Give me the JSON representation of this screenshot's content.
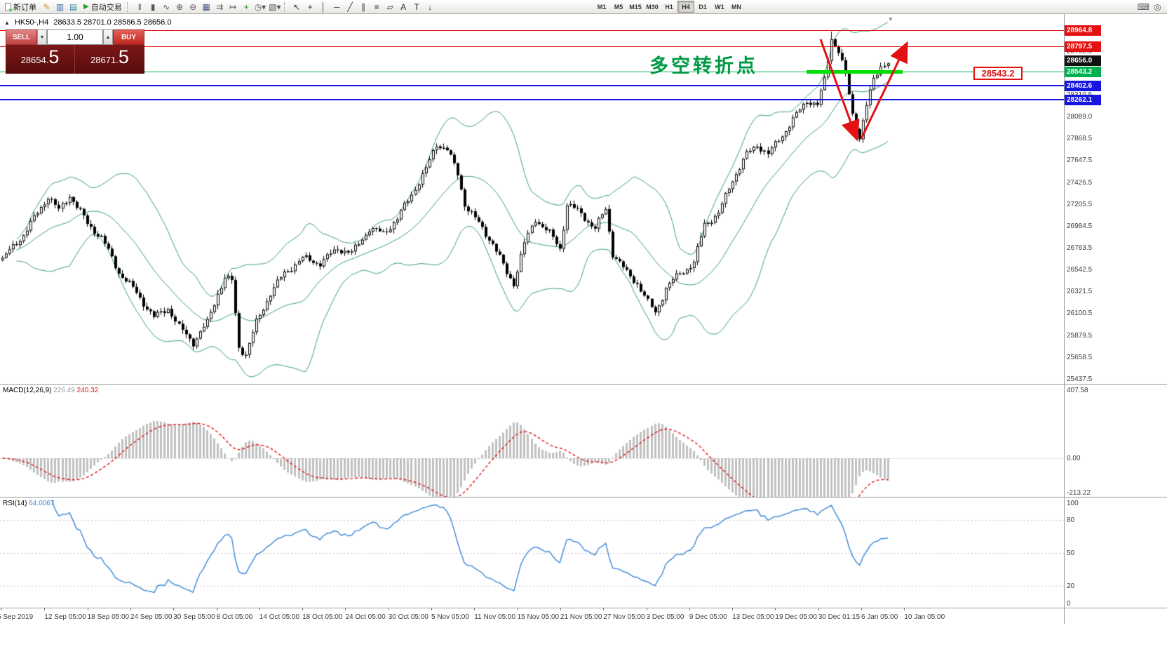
{
  "toolbar": {
    "new_order_label": "新订单",
    "autotrading_label": "自动交易",
    "left_icons": [
      {
        "name": "metaeditor-icon",
        "glyph": "✎",
        "color": "#c79810"
      },
      {
        "name": "market-watch-icon",
        "glyph": "▥",
        "color": "#3a6ea5"
      },
      {
        "name": "data-window-icon",
        "glyph": "▤",
        "color": "#3a8ea5"
      }
    ],
    "chart_icons": [
      {
        "name": "ohlc-bars-icon",
        "glyph": "‖",
        "color": "#555555"
      },
      {
        "name": "candlestick-icon",
        "glyph": "▮",
        "color": "#555555"
      },
      {
        "name": "line-chart-icon",
        "glyph": "∿",
        "color": "#555555"
      },
      {
        "name": "zoom-in-icon",
        "glyph": "⊕",
        "color": "#555555"
      },
      {
        "name": "zoom-out-icon",
        "glyph": "⊖",
        "color": "#555555"
      },
      {
        "name": "tile-windows-icon",
        "glyph": "▦",
        "color": "#4a5a8a"
      },
      {
        "name": "auto-scroll-icon",
        "glyph": "⇉",
        "color": "#555555"
      },
      {
        "name": "chart-shift-icon",
        "glyph": "↦",
        "color": "#555555"
      },
      {
        "name": "indicators-add-icon",
        "glyph": "+",
        "color": "#00a000"
      },
      {
        "name": "periods-dropdown-icon",
        "glyph": "◷▾",
        "color": "#555555"
      },
      {
        "name": "templates-icon",
        "glyph": "▧▾",
        "color": "#555555"
      }
    ],
    "line_tool_icons": [
      {
        "name": "cursor-icon",
        "glyph": "↖",
        "color": "#333333"
      },
      {
        "name": "crosshair-icon",
        "glyph": "+",
        "color": "#333333"
      },
      {
        "name": "vertical-line-icon",
        "glyph": "│",
        "color": "#333333"
      },
      {
        "name": "horizontal-line-icon",
        "glyph": "─",
        "color": "#333333"
      },
      {
        "name": "trendline-icon",
        "glyph": "╱",
        "color": "#333333"
      },
      {
        "name": "channel-icon",
        "glyph": "∥",
        "color": "#333333"
      },
      {
        "name": "fibonacci-icon",
        "glyph": "≡",
        "color": "#333333"
      },
      {
        "name": "shapes-icon",
        "glyph": "▱",
        "color": "#333333"
      },
      {
        "name": "text-icon",
        "glyph": "A",
        "color": "#333333"
      },
      {
        "name": "text-label-icon",
        "glyph": "T",
        "color": "#333333"
      },
      {
        "name": "arrow-objects-icon",
        "glyph": "↓",
        "color": "#333333"
      }
    ],
    "timeframes": [
      "M1",
      "M5",
      "M15",
      "M30",
      "H1",
      "H4",
      "D1",
      "W1",
      "MN"
    ],
    "active_timeframe": "H4",
    "right_icons": [
      {
        "name": "keyboard-icon",
        "glyph": "⌨",
        "color": "#555555"
      },
      {
        "name": "search-cursor-icon",
        "glyph": "◎",
        "color": "#555555"
      }
    ]
  },
  "order_panel": {
    "collapse_icon": "▲",
    "sell_label": "SELL",
    "buy_label": "BUY",
    "volume": "1.00",
    "spin_down": "▼",
    "spin_up": "▲",
    "sell_price_small": "28654.",
    "sell_price_big": "5",
    "buy_price_small": "28671.",
    "buy_price_big": "5"
  },
  "chart": {
    "symbol_title": "HK50-,H4",
    "ohlc_text": "28633.5 28701.0 28586.5 28656.0",
    "annotation_text": "多空转折点",
    "callout_price": "28543.2",
    "shift_marker": "▼",
    "bid_tag": "28656.0",
    "bid_price": 28656.0,
    "price_max": 29130,
    "price_min": 25390,
    "axis_labels": [
      28752.5,
      28531.5,
      28310.5,
      28089.0,
      27868.5,
      27647.5,
      27426.5,
      27205.5,
      26984.5,
      26763.5,
      26542.5,
      26321.5,
      26100.5,
      25879.5,
      25658.5,
      25437.5
    ],
    "hlines": [
      {
        "price": 28964.8,
        "label": "28964.8",
        "color": "#e31111",
        "width": 1
      },
      {
        "price": 28797.5,
        "label": "28797.5",
        "color": "#e31111",
        "width": 1
      },
      {
        "price": 28543.2,
        "label": "28543.2",
        "color": "#00b050",
        "width": 1
      },
      {
        "price": 28402.6,
        "label": "28402.6",
        "color": "#1515dd",
        "width": 2
      },
      {
        "price": 28262.1,
        "label": "28262.1",
        "color": "#1515dd",
        "width": 2
      }
    ],
    "time_labels": [
      "5 Sep 2019",
      "12 Sep 05:00",
      "18 Sep 05:00",
      "24 Sep 05:00",
      "30 Sep 05:00",
      "8 Oct 05:00",
      "14 Oct 05:00",
      "18 Oct 05:00",
      "24 Oct 05:00",
      "30 Oct 05:00",
      "5 Nov 05:00",
      "11 Nov 05:00",
      "15 Nov 05:00",
      "21 Nov 05:00",
      "27 Nov 05:00",
      "3 Dec 05:00",
      "9 Dec 05:00",
      "13 Dec 05:00",
      "19 Dec 05:00",
      "30 Dec 01:15",
      "6 Jan 05:00",
      "10 Jan 05:00"
    ]
  },
  "macd": {
    "label": "MACD(12,26,9)",
    "value_main": "226.49",
    "value_signal": "240.32",
    "axis_max": 407.58,
    "axis_min": -213.22,
    "axis_labels": [
      "407.58",
      "0.00",
      "-213.22"
    ]
  },
  "rsi": {
    "label": "RSI(14)",
    "value": "64.0067",
    "levels": [
      80,
      50,
      20
    ],
    "axis_labels": [
      "100",
      "80",
      "50",
      "20",
      "0"
    ]
  },
  "chart_data": {
    "type": "candlestick",
    "symbol": "HK50-",
    "timeframe": "H4",
    "bars": 252,
    "bollinger": {
      "period": 20,
      "deviation": 2.2
    },
    "peak": {
      "index": 235,
      "high": 28952
    },
    "trough": {
      "index": 69,
      "low": 25655
    },
    "close_anchors": [
      [
        0,
        26650
      ],
      [
        6,
        26900
      ],
      [
        10,
        27120
      ],
      [
        13,
        27290
      ],
      [
        16,
        27140
      ],
      [
        19,
        27300
      ],
      [
        24,
        27010
      ],
      [
        28,
        26870
      ],
      [
        33,
        26520
      ],
      [
        38,
        26310
      ],
      [
        43,
        26060
      ],
      [
        47,
        26160
      ],
      [
        50,
        25960
      ],
      [
        54,
        25810
      ],
      [
        58,
        26010
      ],
      [
        61,
        26310
      ],
      [
        63,
        26460
      ],
      [
        65,
        26430
      ],
      [
        67,
        25760
      ],
      [
        69,
        25690
      ],
      [
        72,
        26010
      ],
      [
        76,
        26310
      ],
      [
        80,
        26510
      ],
      [
        85,
        26660
      ],
      [
        90,
        26610
      ],
      [
        95,
        26760
      ],
      [
        99,
        26710
      ],
      [
        104,
        26960
      ],
      [
        108,
        26910
      ],
      [
        112,
        27060
      ],
      [
        116,
        27310
      ],
      [
        120,
        27560
      ],
      [
        123,
        27820
      ],
      [
        126,
        27760
      ],
      [
        129,
        27510
      ],
      [
        131,
        27210
      ],
      [
        135,
        27010
      ],
      [
        139,
        26810
      ],
      [
        143,
        26510
      ],
      [
        145,
        26410
      ],
      [
        148,
        26810
      ],
      [
        151,
        27060
      ],
      [
        155,
        26910
      ],
      [
        158,
        26760
      ],
      [
        160,
        27210
      ],
      [
        164,
        27110
      ],
      [
        168,
        26960
      ],
      [
        171,
        27160
      ],
      [
        173,
        26710
      ],
      [
        177,
        26510
      ],
      [
        180,
        26410
      ],
      [
        183,
        26210
      ],
      [
        185,
        26110
      ],
      [
        188,
        26360
      ],
      [
        192,
        26510
      ],
      [
        196,
        26610
      ],
      [
        199,
        27010
      ],
      [
        203,
        27110
      ],
      [
        207,
        27460
      ],
      [
        211,
        27710
      ],
      [
        214,
        27810
      ],
      [
        217,
        27710
      ],
      [
        220,
        27860
      ],
      [
        224,
        28060
      ],
      [
        228,
        28260
      ],
      [
        231,
        28210
      ],
      [
        233,
        28460
      ],
      [
        235,
        28890
      ],
      [
        237,
        28760
      ],
      [
        239,
        28510
      ],
      [
        241,
        28110
      ],
      [
        243,
        27890
      ],
      [
        245,
        28210
      ],
      [
        247,
        28460
      ],
      [
        249,
        28610
      ],
      [
        251,
        28650
      ]
    ]
  },
  "colors": {
    "up_candle": "#ffffff",
    "down_candle": "#000000",
    "band": "#3aa06a",
    "macd_hist": "#c0c0c0",
    "macd_signal": "#e31111",
    "rsi_line": "#3a87d9",
    "annotation_green": "#009a44",
    "callout_red": "#e31111",
    "highlight_green": "#00e000"
  }
}
